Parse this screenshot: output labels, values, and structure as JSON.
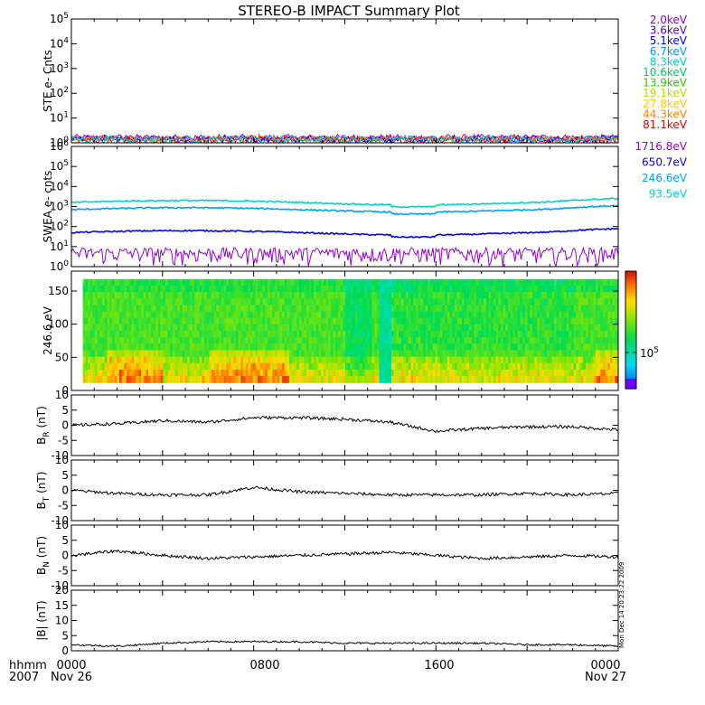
{
  "title": "STEREO-B IMPACT Summary Plot",
  "footer": {
    "row1_label": "hhmm",
    "row2_label": "2007",
    "ticks": [
      "0000",
      "0800",
      "1600",
      "0000"
    ],
    "start_date": "Nov 26",
    "end_date": "Nov 27"
  },
  "stamp": "Mon Dec 14 20:23:22 2009",
  "colorbar": {
    "tick_label": "10^5",
    "colors": [
      "#6a00ff",
      "#0020ff",
      "#00c8ff",
      "#00ff80",
      "#c8ff00",
      "#ffd000",
      "#ff6000",
      "#e00000"
    ]
  },
  "chart_data": [
    {
      "id": "ste",
      "type": "line",
      "ylabel": "STE e- Cnts",
      "yscale": "log",
      "ylim_exp": [
        0,
        5
      ],
      "yticks": [
        "10^0",
        "10^1",
        "10^2",
        "10^3",
        "10^4",
        "10^5"
      ],
      "series": [
        {
          "name": "2.0keV",
          "color": "#9400d3"
        },
        {
          "name": "3.6keV",
          "color": "#5a00c8"
        },
        {
          "name": "5.1keV",
          "color": "#0000ff"
        },
        {
          "name": "6.7keV",
          "color": "#0096ff"
        },
        {
          "name": "8.3keV",
          "color": "#00d2c8"
        },
        {
          "name": "10.6keV",
          "color": "#00c864"
        },
        {
          "name": "13.9keV",
          "color": "#32cd00"
        },
        {
          "name": "19.1keV",
          "color": "#b4dc00"
        },
        {
          "name": "27.8keV",
          "color": "#ffc800"
        },
        {
          "name": "44.3keV",
          "color": "#ff8200"
        },
        {
          "name": "81.1keV",
          "color": "#e60000"
        }
      ],
      "level_note": "all channels near 10^0 (~1-2 counts)"
    },
    {
      "id": "swea",
      "type": "line",
      "ylabel": "SWEA e- cnts",
      "yscale": "log",
      "ylim_exp": [
        0,
        6
      ],
      "yticks": [
        "10^0",
        "10^1",
        "10^2",
        "10^3",
        "10^4",
        "10^5",
        "10^6"
      ],
      "series": [
        {
          "name": "1716.8eV",
          "color": "#9400d3",
          "level": 3
        },
        {
          "name": "650.7eV",
          "color": "#0000ff",
          "level": 50
        },
        {
          "name": "246.6eV",
          "color": "#00a0ff",
          "level": 700
        },
        {
          "name": "93.5eV",
          "color": "#00d2c8",
          "level": 1600
        }
      ]
    },
    {
      "id": "pad",
      "type": "heatmap",
      "ylabel": "246.6 eV",
      "ylim": [
        0,
        180
      ],
      "yticks": [
        0,
        50,
        100,
        150
      ]
    },
    {
      "id": "br",
      "type": "line",
      "ylabel": "B_R (nT)",
      "ylim": [
        -10,
        10
      ],
      "yticks": [
        -10,
        -5,
        0,
        5,
        10
      ],
      "x": [
        0,
        2,
        4,
        6,
        8,
        10,
        12,
        14,
        16,
        18,
        20,
        22,
        24
      ],
      "values": [
        0,
        0.5,
        1.5,
        1,
        2.5,
        2.5,
        2,
        1,
        -2,
        -1,
        -0.5,
        -0.5,
        -1.5
      ]
    },
    {
      "id": "bt",
      "type": "line",
      "ylabel": "B_T (nT)",
      "ylim": [
        -10,
        10
      ],
      "yticks": [
        -10,
        -5,
        0,
        5,
        10
      ],
      "x": [
        0,
        2,
        4,
        6,
        8,
        10,
        12,
        14,
        16,
        18,
        20,
        22,
        24
      ],
      "values": [
        0,
        -1,
        -1.5,
        -1.5,
        1,
        -0.5,
        -1,
        -1.5,
        -1.5,
        -1.5,
        -1,
        -1.5,
        -1
      ]
    },
    {
      "id": "bn",
      "type": "line",
      "ylabel": "B_N (nT)",
      "ylim": [
        -10,
        10
      ],
      "yticks": [
        -10,
        -5,
        0,
        5,
        10
      ],
      "x": [
        0,
        2,
        4,
        6,
        8,
        10,
        12,
        14,
        16,
        18,
        20,
        22,
        24
      ],
      "values": [
        0,
        1.5,
        0,
        -1,
        -0.5,
        0,
        0.5,
        1,
        0,
        -1,
        -0.5,
        0,
        -0.5
      ]
    },
    {
      "id": "bmag",
      "type": "line",
      "ylabel": "|B| (nT)",
      "ylim": [
        0,
        20
      ],
      "yticks": [
        0,
        5,
        10,
        15,
        20
      ],
      "x": [
        0,
        2,
        4,
        6,
        8,
        10,
        12,
        14,
        16,
        18,
        20,
        22,
        24
      ],
      "values": [
        2,
        1.5,
        2.5,
        3,
        3,
        3,
        2.5,
        2.5,
        2.5,
        2.5,
        2,
        2,
        1.5
      ]
    }
  ]
}
